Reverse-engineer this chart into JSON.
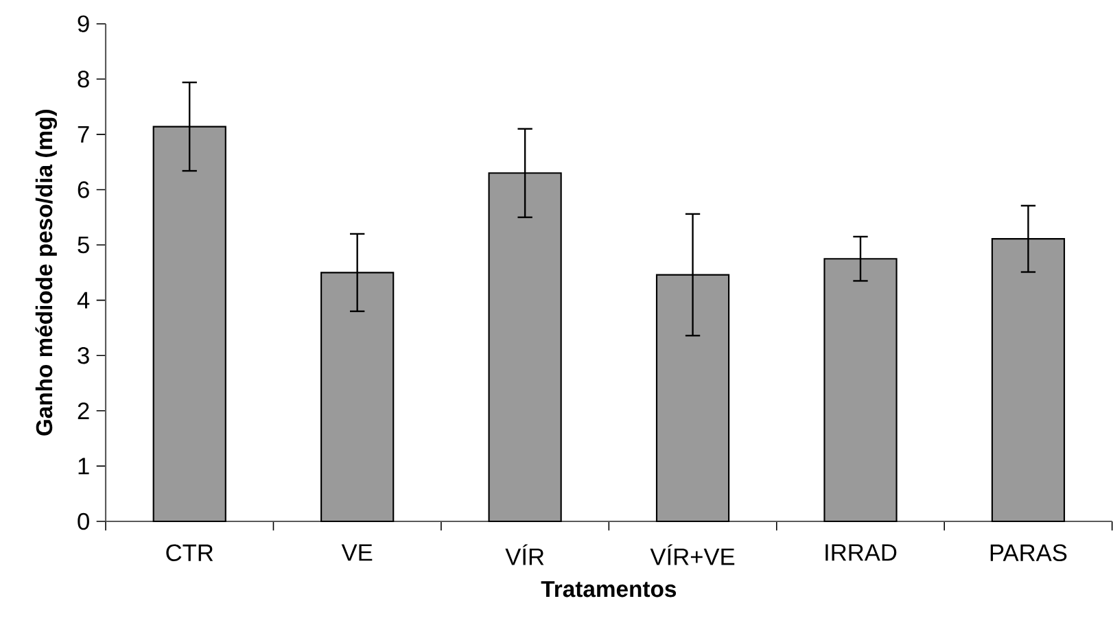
{
  "chart_data": {
    "type": "bar",
    "xlabel": "Tratamentos",
    "ylabel": "Ganho médiode peso/dia (mg)",
    "categories": [
      "CTR",
      "VE",
      "VÍR",
      "VÍR+VE",
      "IRRAD",
      "PARAS"
    ],
    "values": [
      7.14,
      4.5,
      6.3,
      4.46,
      4.75,
      5.11
    ],
    "errors": [
      0.8,
      0.7,
      0.8,
      1.1,
      0.4,
      0.6
    ],
    "color": "#9a9a9a",
    "ylim": [
      0,
      9
    ],
    "yticks": [
      0,
      1,
      2,
      3,
      4,
      5,
      6,
      7,
      8,
      9
    ],
    "grid": false
  }
}
